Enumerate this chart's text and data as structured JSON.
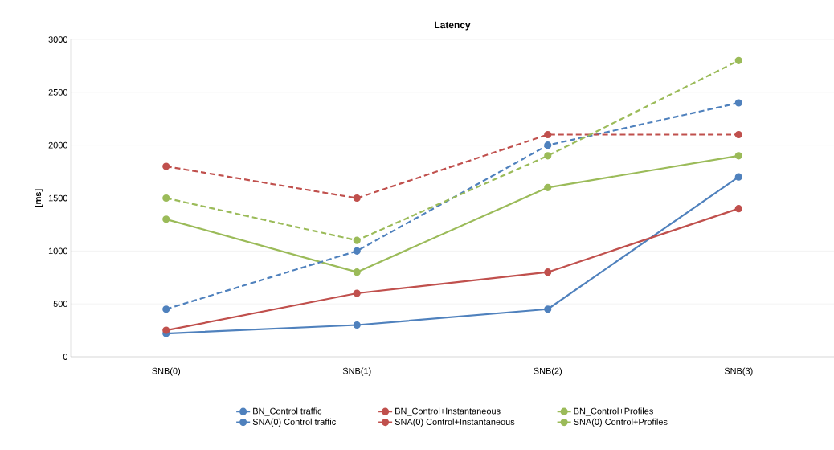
{
  "chart_data": {
    "type": "line",
    "title": "Latency",
    "ylabel": "[ms]",
    "categories": [
      "SNB(0)",
      "SNB(1)",
      "SNB(2)",
      "SNB(3)"
    ],
    "series": [
      {
        "name": "BN_Control traffic",
        "color": "#4f81bd",
        "line_style": "solid",
        "values": [
          220,
          300,
          450,
          1700
        ]
      },
      {
        "name": "BN_Control+Instantaneous",
        "color": "#c0504d",
        "line_style": "solid",
        "values": [
          250,
          600,
          800,
          1400
        ]
      },
      {
        "name": "BN_Control+Profiles",
        "color": "#9bbb59",
        "line_style": "solid",
        "values": [
          1300,
          800,
          1600,
          1900
        ]
      },
      {
        "name": "SNA(0)  Control traffic",
        "color": "#4f81bd",
        "line_style": "dashed",
        "values": [
          450,
          1000,
          2000,
          2400
        ]
      },
      {
        "name": "SNA(0)  Control+Instantaneous",
        "color": "#c0504d",
        "line_style": "dashed",
        "values": [
          1800,
          1500,
          2100,
          2100
        ]
      },
      {
        "name": "SNA(0)  Control+Profiles",
        "color": "#9bbb59",
        "line_style": "dashed",
        "values": [
          1500,
          1100,
          1900,
          2800
        ]
      }
    ],
    "ylim": [
      0,
      3000
    ],
    "yticks": [
      0,
      500,
      1000,
      1500,
      2000,
      2500,
      3000
    ],
    "grid": "y",
    "legend": "bottom",
    "marker": "circle"
  }
}
